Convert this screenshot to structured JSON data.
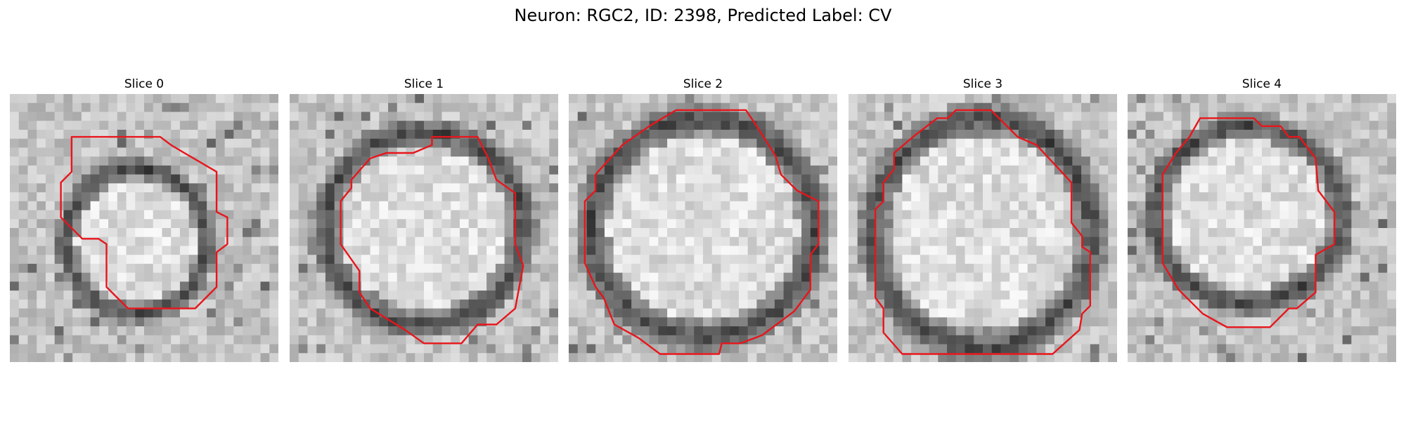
{
  "figure": {
    "title": "Neuron: RGC2, ID: 2398, Predicted Label: CV"
  },
  "panels": [
    {
      "title": "Slice 0",
      "image": "grayscale-em-crop",
      "overlay": "red-contour"
    },
    {
      "title": "Slice 1",
      "image": "grayscale-em-crop",
      "overlay": "red-contour"
    },
    {
      "title": "Slice 2",
      "image": "grayscale-em-crop",
      "overlay": "red-contour"
    },
    {
      "title": "Slice 3",
      "image": "grayscale-em-crop",
      "overlay": "red-contour"
    },
    {
      "title": "Slice 4",
      "image": "grayscale-em-crop",
      "overlay": "red-contour"
    }
  ],
  "colors": {
    "contour": "#e8151b",
    "background": "#ffffff"
  }
}
